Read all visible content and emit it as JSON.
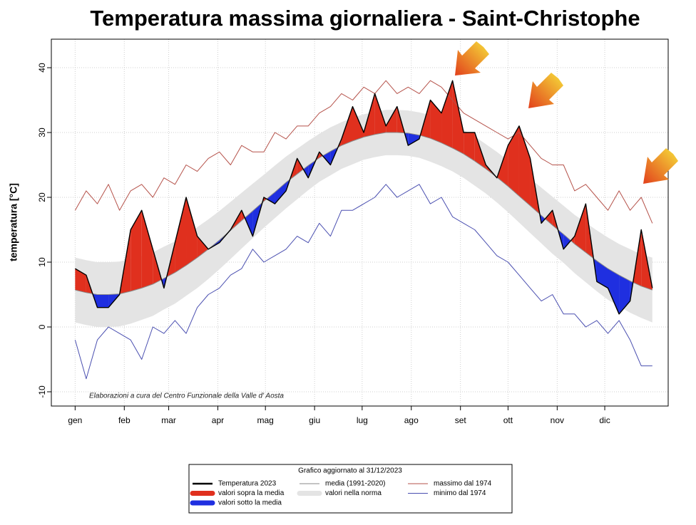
{
  "chart_data": {
    "type": "line",
    "title": "Temperatura massima giornaliera - Saint-Christophe",
    "y_label": "temperatura [°C]",
    "annotation": "Elaborazioni a cura del Centro Funzionale della Valle d' Aosta",
    "legend_title": "Grafico aggiornato al 31/12/2023",
    "x": [
      1,
      8,
      15,
      22,
      29,
      36,
      43,
      50,
      57,
      64,
      71,
      78,
      85,
      92,
      99,
      106,
      113,
      120,
      127,
      134,
      141,
      148,
      155,
      162,
      169,
      176,
      183,
      190,
      197,
      204,
      211,
      218,
      225,
      232,
      239,
      246,
      253,
      260,
      267,
      274,
      281,
      288,
      295,
      302,
      309,
      316,
      323,
      330,
      337,
      344,
      351,
      358,
      365
    ],
    "xlim": [
      -14,
      375
    ],
    "xticks": [
      {
        "value": 1,
        "label": "gen"
      },
      {
        "value": 32,
        "label": "feb"
      },
      {
        "value": 60,
        "label": "mar"
      },
      {
        "value": 91,
        "label": "apr"
      },
      {
        "value": 121,
        "label": "mag"
      },
      {
        "value": 152,
        "label": "giu"
      },
      {
        "value": 182,
        "label": "lug"
      },
      {
        "value": 213,
        "label": "ago"
      },
      {
        "value": 244,
        "label": "set"
      },
      {
        "value": 274,
        "label": "ott"
      },
      {
        "value": 305,
        "label": "nov"
      },
      {
        "value": 335,
        "label": "dic"
      }
    ],
    "ylim": [
      -12.2,
      44.4
    ],
    "yticks": [
      -10,
      0,
      10,
      20,
      30,
      40
    ],
    "grid": true,
    "series": [
      {
        "name": "Temperatura  2023",
        "color": "#000000",
        "values": [
          9,
          8,
          3,
          3,
          5,
          15,
          18,
          12,
          6,
          13,
          20,
          14,
          12,
          13,
          15,
          18,
          14,
          20,
          19,
          21,
          26,
          23,
          27,
          25,
          29,
          34,
          30,
          36,
          31,
          34,
          28,
          29,
          35,
          33,
          38,
          30,
          30,
          25,
          23,
          28,
          31,
          26,
          16,
          18,
          12,
          14,
          19,
          7,
          6,
          2,
          4,
          15,
          6
        ]
      },
      {
        "name": "media (1991-2020)",
        "color": "#8a8a8a",
        "values": [
          5.7,
          5.3,
          5.0,
          5.0,
          5.1,
          5.5,
          6.0,
          6.6,
          7.5,
          8.4,
          9.5,
          10.7,
          12.0,
          13.4,
          14.9,
          16.4,
          17.9,
          19.4,
          20.8,
          22.3,
          23.6,
          24.9,
          26.1,
          27.1,
          28.0,
          28.7,
          29.3,
          29.7,
          30.0,
          30.0,
          29.9,
          29.6,
          29.1,
          28.4,
          27.6,
          26.7,
          25.6,
          24.4,
          23.1,
          21.7,
          20.2,
          18.7,
          17.2,
          15.7,
          14.3,
          12.8,
          11.5,
          10.2,
          9.0,
          8.0,
          7.1,
          6.3,
          5.7
        ]
      },
      {
        "name": "massimo dal 1974",
        "color": "#b5524a",
        "values": [
          18,
          21,
          19,
          22,
          18,
          21,
          22,
          20,
          23,
          22,
          25,
          24,
          26,
          27,
          25,
          28,
          27,
          27,
          30,
          29,
          31,
          31,
          33,
          34,
          36,
          35,
          37,
          36,
          38,
          36,
          37,
          36,
          38,
          37,
          35,
          33,
          32,
          31,
          30,
          29,
          30,
          28,
          26,
          25,
          25,
          21,
          22,
          20,
          18,
          21,
          18,
          20,
          16
        ]
      },
      {
        "name": "minimo dal 1974",
        "color": "#4a4fb0",
        "values": [
          -2,
          -8,
          -2,
          0,
          -1,
          -2,
          -5,
          0,
          -1,
          1,
          -1,
          3,
          5,
          6,
          8,
          9,
          12,
          10,
          11,
          12,
          14,
          13,
          16,
          14,
          18,
          18,
          19,
          20,
          22,
          20,
          21,
          22,
          19,
          20,
          17,
          16,
          15,
          13,
          11,
          10,
          8,
          6,
          4,
          5,
          2,
          2,
          0,
          1,
          -1,
          1,
          -2,
          -6,
          -6
        ]
      }
    ],
    "band": {
      "name": "valori nella norma",
      "color": "#e4e4e4",
      "lower": [
        0.7,
        0.3,
        0.0,
        0.0,
        0.1,
        0.5,
        1.1,
        1.7,
        2.7,
        3.6,
        4.8,
        6.0,
        7.4,
        8.9,
        10.5,
        12.1,
        13.7,
        15.3,
        16.8,
        18.3,
        19.7,
        21.1,
        22.4,
        23.4,
        24.4,
        25.1,
        25.8,
        26.2,
        26.5,
        26.5,
        26.4,
        26.1,
        25.5,
        24.8,
        24.0,
        23.0,
        21.8,
        20.6,
        19.2,
        17.7,
        16.1,
        14.5,
        12.9,
        11.3,
        9.9,
        8.3,
        6.9,
        5.5,
        4.2,
        3.2,
        2.2,
        1.4,
        0.7
      ],
      "upper": [
        10.7,
        10.3,
        10.0,
        10.0,
        10.1,
        10.5,
        10.9,
        11.5,
        12.4,
        13.2,
        14.2,
        15.4,
        16.6,
        17.9,
        19.3,
        20.7,
        22.1,
        23.5,
        24.9,
        26.3,
        27.5,
        28.7,
        29.8,
        30.8,
        31.6,
        32.3,
        32.8,
        33.2,
        33.5,
        33.5,
        33.4,
        33.1,
        32.7,
        32.0,
        31.2,
        30.4,
        29.4,
        28.2,
        27.0,
        25.7,
        24.3,
        22.9,
        21.5,
        20.1,
        18.7,
        17.3,
        16.1,
        14.9,
        13.8,
        12.8,
        12.0,
        11.2,
        10.7
      ]
    },
    "fill_above": {
      "name": "valori sopra la media",
      "color": "#e0301e"
    },
    "fill_below": {
      "name": "valori sotto la media",
      "color": "#1f2fe0"
    }
  }
}
